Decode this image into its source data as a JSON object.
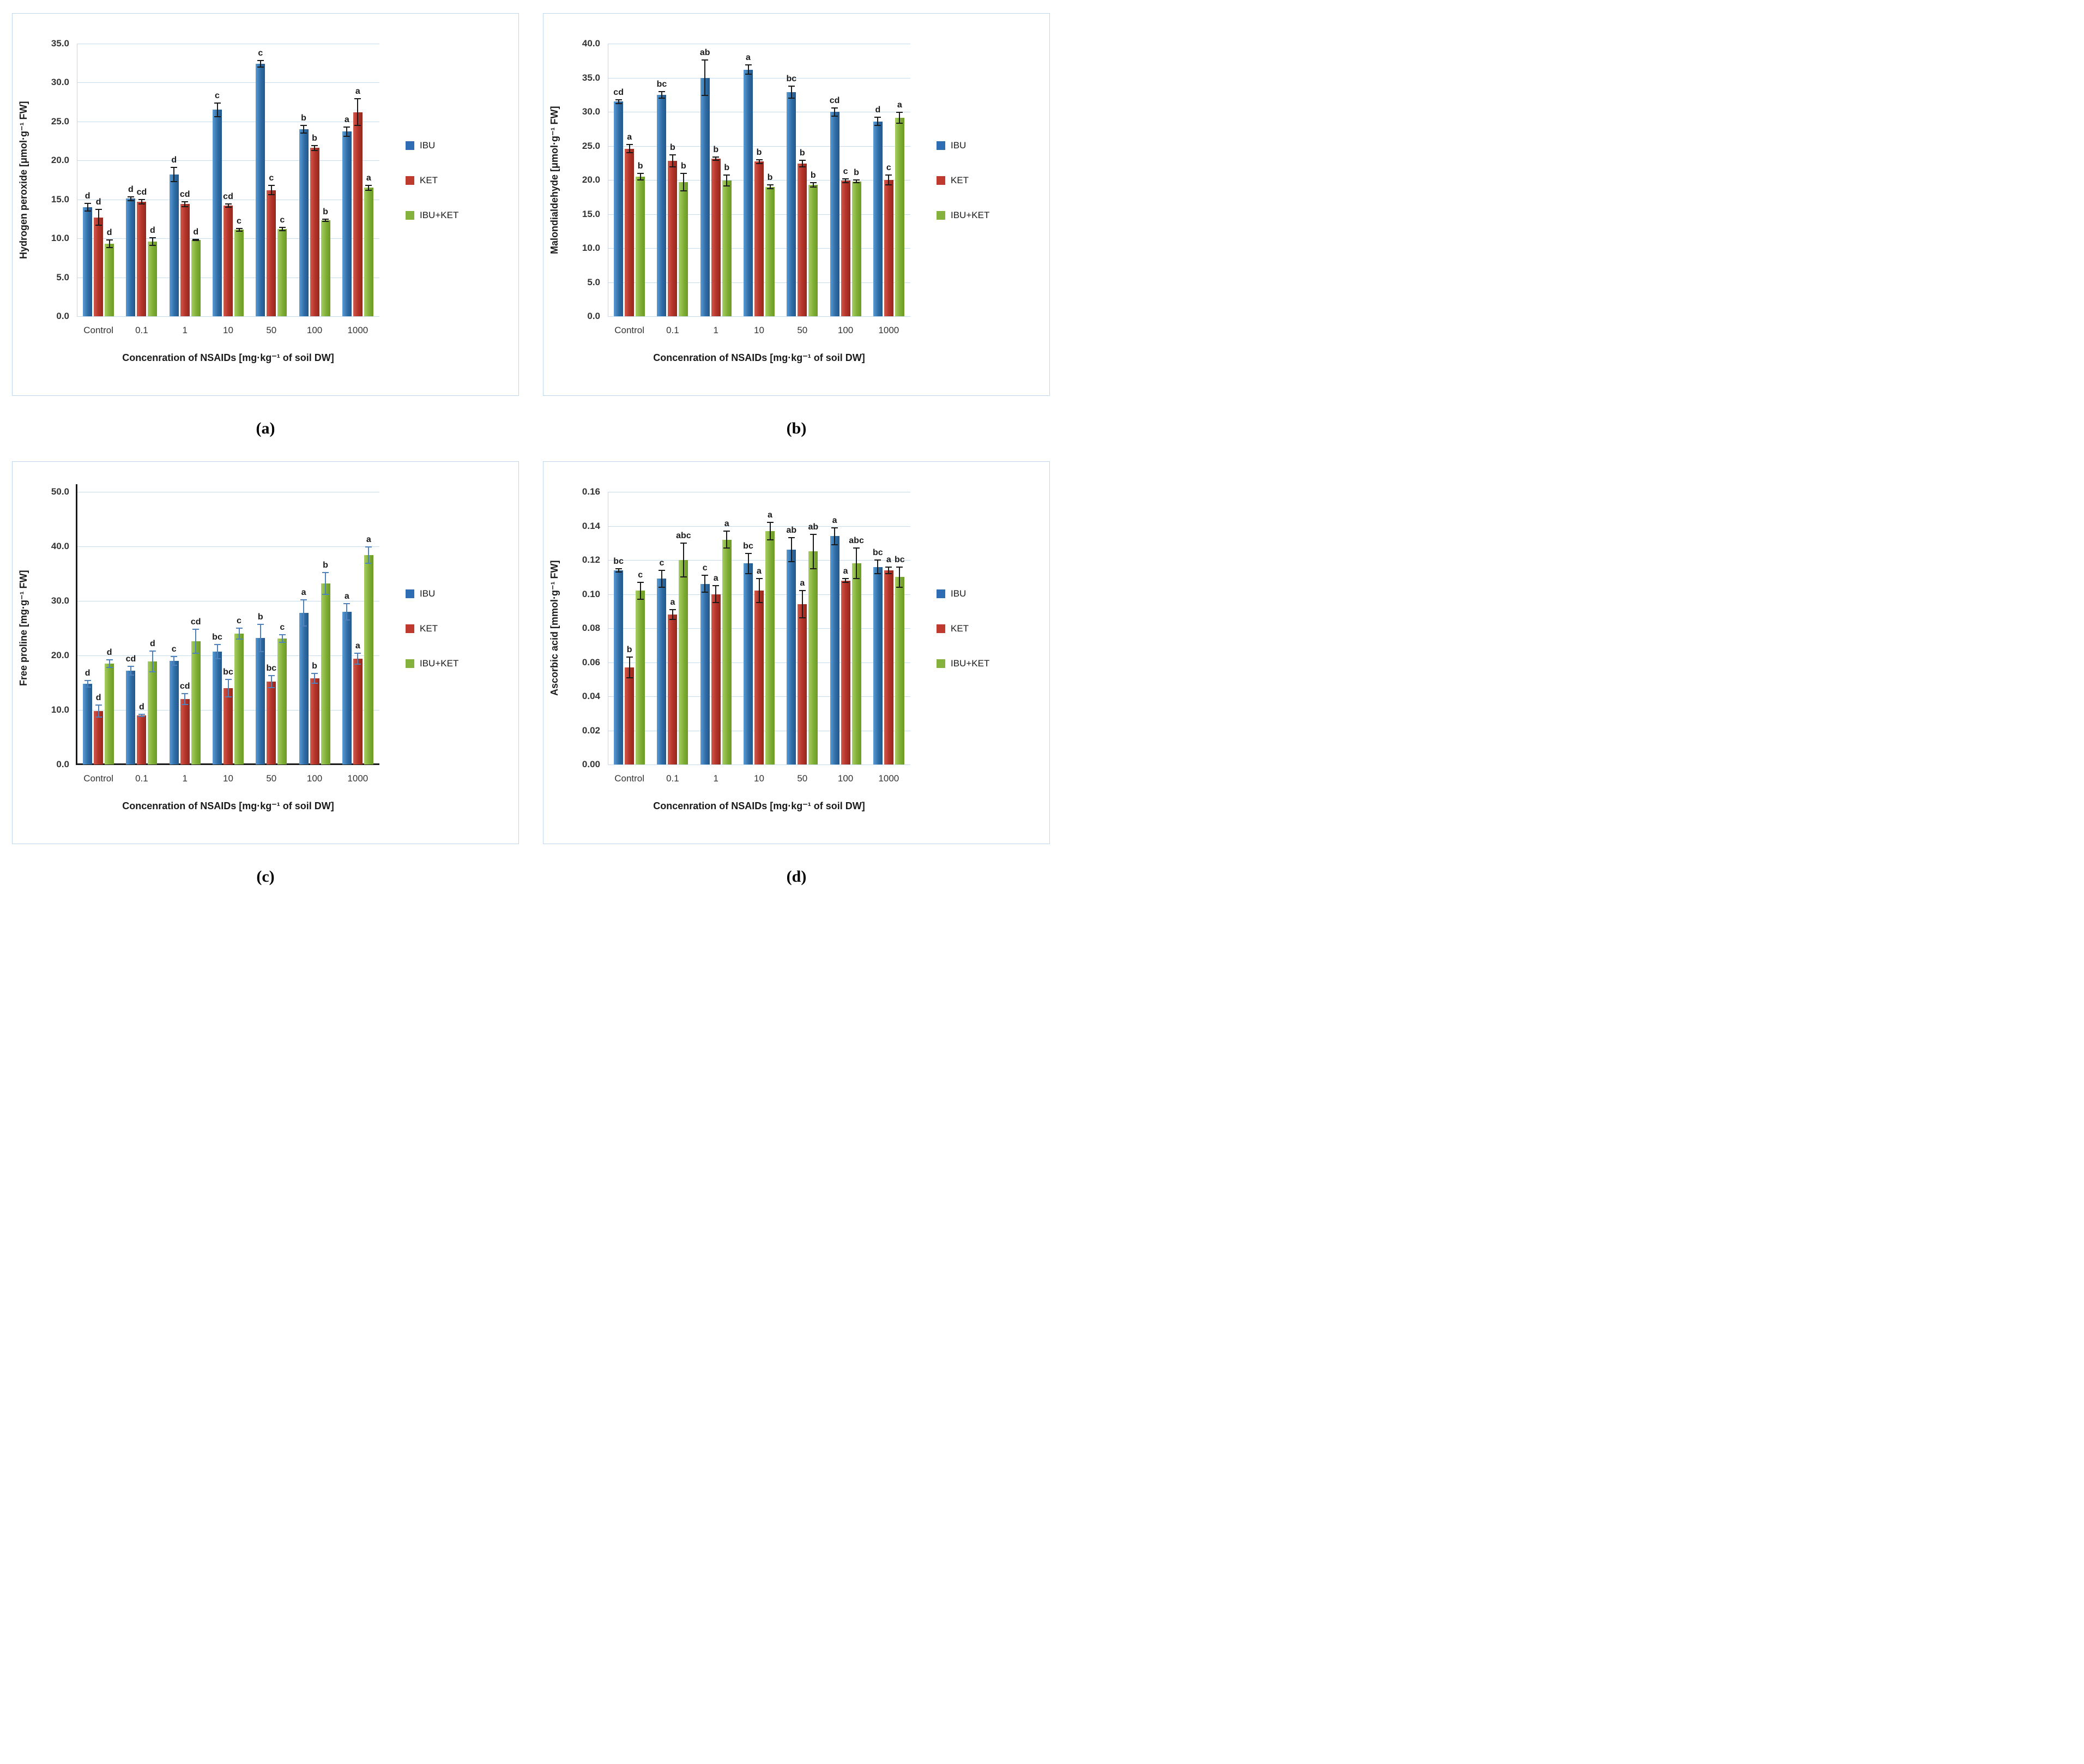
{
  "figure": {
    "legend_labels": [
      "IBU",
      "KET",
      "IBU+KET"
    ],
    "series_colors": {
      "IBU": "#2E6DB4",
      "KET": "#BE3A2E",
      "IBU+KET": "#84B23C"
    },
    "gridline_color": "#C5DCF0",
    "panel_border_color": "#BDD7EE",
    "captions": [
      "(a)",
      "(b)",
      "(c)",
      "(d)"
    ]
  },
  "chart_data": [
    {
      "id": "a",
      "type": "bar",
      "caption": "(a)",
      "title": "",
      "ylabel": "Hydrogen peroxide [μmol·g⁻¹ FW]",
      "xlabel": "Concenration of NSAIDs [mg·kg⁻¹ of soil DW]",
      "ylim": [
        0,
        35
      ],
      "grid": true,
      "legend_position": "right",
      "black_axes": false,
      "error_bar_color": "#1a1a1a",
      "ytick_values": [
        0,
        5,
        10,
        15,
        20,
        25,
        30,
        35
      ],
      "ytick_labels": [
        "0.0",
        "5.0",
        "10.0",
        "15.0",
        "20.0",
        "25.0",
        "30.0",
        "35.0"
      ],
      "categories": [
        "Control",
        "0.1",
        "1",
        "10",
        "50",
        "100",
        "1000"
      ],
      "series": [
        {
          "name": "IBU",
          "values": [
            14.0,
            15.1,
            18.2,
            26.5,
            32.4,
            24.0,
            23.7
          ],
          "errors": [
            0.5,
            0.25,
            0.9,
            0.9,
            0.4,
            0.5,
            0.6
          ],
          "letters": [
            "d",
            "d",
            "d",
            "c",
            "c",
            "b",
            "a"
          ]
        },
        {
          "name": "KET",
          "values": [
            12.7,
            14.7,
            14.4,
            14.2,
            16.2,
            21.6,
            26.2
          ],
          "errors": [
            1.0,
            0.3,
            0.3,
            0.2,
            0.6,
            0.3,
            1.7
          ],
          "letters": [
            "d",
            "cd",
            "cd",
            "cd",
            "c",
            "b",
            "a"
          ]
        },
        {
          "name": "IBU+KET",
          "values": [
            9.3,
            9.6,
            9.8,
            11.1,
            11.2,
            12.3,
            16.5
          ],
          "errors": [
            0.5,
            0.5,
            0.1,
            0.2,
            0.2,
            0.15,
            0.3
          ],
          "letters": [
            "d",
            "d",
            "d",
            "c",
            "c",
            "b",
            "a"
          ]
        }
      ]
    },
    {
      "id": "b",
      "type": "bar",
      "caption": "(b)",
      "title": "",
      "ylabel": "Malondialdehyde [μmol·g⁻¹ FW]",
      "xlabel": "Concenration of NSAIDs [mg·kg⁻¹ of soil DW]",
      "ylim": [
        0,
        40
      ],
      "grid": true,
      "legend_position": "right",
      "black_axes": false,
      "error_bar_color": "#1a1a1a",
      "ytick_values": [
        0,
        5,
        10,
        15,
        20,
        25,
        30,
        35,
        40
      ],
      "ytick_labels": [
        "0.0",
        "5.0",
        "10.0",
        "15.0",
        "20.0",
        "25.0",
        "30.0",
        "35.0",
        "40.0"
      ],
      "categories": [
        "Control",
        "0.1",
        "1",
        "10",
        "50",
        "100",
        "1000"
      ],
      "series": [
        {
          "name": "IBU",
          "values": [
            31.5,
            32.5,
            35.0,
            36.2,
            32.9,
            30.0,
            28.6
          ],
          "errors": [
            0.3,
            0.5,
            2.6,
            0.7,
            0.9,
            0.6,
            0.6
          ],
          "letters": [
            "cd",
            "bc",
            "ab",
            "a",
            "bc",
            "cd",
            "d"
          ]
        },
        {
          "name": "KET",
          "values": [
            24.6,
            22.8,
            23.1,
            22.7,
            22.4,
            19.9,
            20.0
          ],
          "errors": [
            0.6,
            0.9,
            0.25,
            0.3,
            0.5,
            0.3,
            0.7
          ],
          "letters": [
            "a",
            "b",
            "b",
            "b",
            "b",
            "c",
            "c"
          ]
        },
        {
          "name": "IBU+KET",
          "values": [
            20.5,
            19.7,
            19.9,
            19.0,
            19.3,
            19.8,
            29.1
          ],
          "errors": [
            0.5,
            1.3,
            0.8,
            0.3,
            0.3,
            0.2,
            0.8
          ],
          "letters": [
            "b",
            "b",
            "b",
            "b",
            "b",
            "b",
            "a"
          ]
        }
      ]
    },
    {
      "id": "c",
      "type": "bar",
      "caption": "(c)",
      "title": "",
      "ylabel": "Free proline [mg·g⁻¹ FW]",
      "xlabel": "Concenration of NSAIDs [mg·kg⁻¹ of soil DW]",
      "ylim": [
        0,
        50
      ],
      "grid": true,
      "legend_position": "right",
      "black_axes": true,
      "error_bar_color": "#4F81BD",
      "ytick_values": [
        0,
        10,
        20,
        30,
        40,
        50
      ],
      "ytick_labels": [
        "0.0",
        "10.0",
        "20.0",
        "30.0",
        "40.0",
        "50.0"
      ],
      "categories": [
        "Control",
        "0.1",
        "1",
        "10",
        "50",
        "100",
        "1000"
      ],
      "series": [
        {
          "name": "IBU",
          "values": [
            14.8,
            17.2,
            19.0,
            20.7,
            23.2,
            27.8,
            28.0
          ],
          "errors": [
            0.6,
            0.8,
            0.8,
            1.3,
            2.5,
            2.4,
            1.5
          ],
          "letters": [
            "d",
            "cd",
            "c",
            "bc",
            "b",
            "a",
            "a"
          ]
        },
        {
          "name": "KET",
          "values": [
            9.8,
            9.0,
            12.0,
            14.0,
            15.2,
            15.8,
            19.4
          ],
          "errors": [
            1.1,
            0.2,
            1.0,
            1.6,
            1.1,
            0.9,
            1.0
          ],
          "letters": [
            "d",
            "d",
            "cd",
            "bc",
            "bc",
            "b",
            "a"
          ]
        },
        {
          "name": "IBU+KET",
          "values": [
            18.5,
            18.9,
            22.6,
            24.0,
            23.1,
            33.2,
            38.4
          ],
          "errors": [
            0.7,
            1.9,
            2.2,
            1.0,
            0.7,
            2.0,
            1.5
          ],
          "letters": [
            "d",
            "d",
            "cd",
            "c",
            "c",
            "b",
            "a"
          ]
        }
      ]
    },
    {
      "id": "d",
      "type": "bar",
      "caption": "(d)",
      "title": "",
      "ylabel": "Ascorbic acid [mmol·g⁻¹ FW]",
      "xlabel": "Concenration of NSAIDs [mg·kg⁻¹ of soil DW]",
      "ylim": [
        0,
        0.16
      ],
      "grid": true,
      "legend_position": "right",
      "black_axes": false,
      "error_bar_color": "#1a1a1a",
      "ytick_values": [
        0,
        0.02,
        0.04,
        0.06,
        0.08,
        0.1,
        0.12,
        0.14,
        0.16
      ],
      "ytick_labels": [
        "0.00",
        "0.02",
        "0.04",
        "0.06",
        "0.08",
        "0.10",
        "0.12",
        "0.14",
        "0.16"
      ],
      "categories": [
        "Control",
        "0.1",
        "1",
        "10",
        "50",
        "100",
        "1000"
      ],
      "series": [
        {
          "name": "IBU",
          "values": [
            0.114,
            0.109,
            0.106,
            0.118,
            0.126,
            0.134,
            0.116
          ],
          "errors": [
            0.001,
            0.005,
            0.005,
            0.006,
            0.007,
            0.005,
            0.004
          ],
          "letters": [
            "bc",
            "c",
            "c",
            "bc",
            "ab",
            "a",
            "bc"
          ]
        },
        {
          "name": "KET",
          "values": [
            0.057,
            0.088,
            0.1,
            0.102,
            0.094,
            0.108,
            0.114
          ],
          "errors": [
            0.006,
            0.003,
            0.005,
            0.007,
            0.008,
            0.001,
            0.002
          ],
          "letters": [
            "b",
            "a",
            "a",
            "a",
            "a",
            "a",
            "a"
          ]
        },
        {
          "name": "IBU+KET",
          "values": [
            0.102,
            0.12,
            0.132,
            0.137,
            0.125,
            0.118,
            0.11
          ],
          "errors": [
            0.005,
            0.01,
            0.005,
            0.005,
            0.01,
            0.009,
            0.006
          ],
          "letters": [
            "c",
            "abc",
            "a",
            "a",
            "ab",
            "abc",
            "bc"
          ]
        }
      ]
    }
  ]
}
